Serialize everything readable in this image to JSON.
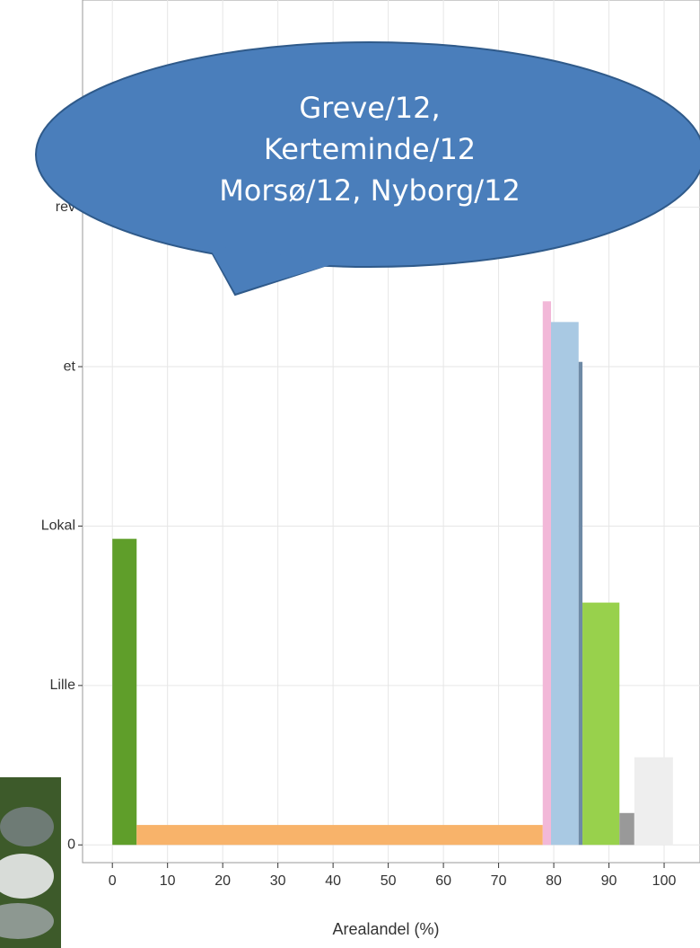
{
  "chart_data": {
    "type": "histogram",
    "xlabel": "Arealandel (%)",
    "bins": [
      0,
      4.4,
      78,
      79.5,
      84.5,
      85.2,
      91.9,
      94.6,
      101.6
    ],
    "values": [
      1.92,
      0.125,
      3.41,
      3.28,
      3.03,
      1.52,
      0.2,
      0.55
    ],
    "colors": [
      "#5f9e2a",
      "#f8b36a",
      "#f2b8d8",
      "#a9c9e3",
      "#6e8aa6",
      "#98d14c",
      "#999999",
      "#eeeeee"
    ],
    "xlim": [
      -5.4,
      106.5
    ],
    "xticks": [
      0,
      10,
      20,
      30,
      40,
      50,
      60,
      70,
      80,
      90,
      100
    ],
    "ylim": [
      -0.1,
      5.3
    ],
    "yticks": [
      0,
      {
        "value": 1,
        "label": "Lille"
      },
      {
        "value": 2,
        "label": "Lokal"
      },
      {
        "value": 3,
        "label": "et"
      },
      {
        "value": 4,
        "label": "rev"
      }
    ],
    "grid": true,
    "annotation": [
      "Greve/12,",
      "Kerteminde/12",
      "Morsø/12, Nyborg/12"
    ]
  }
}
